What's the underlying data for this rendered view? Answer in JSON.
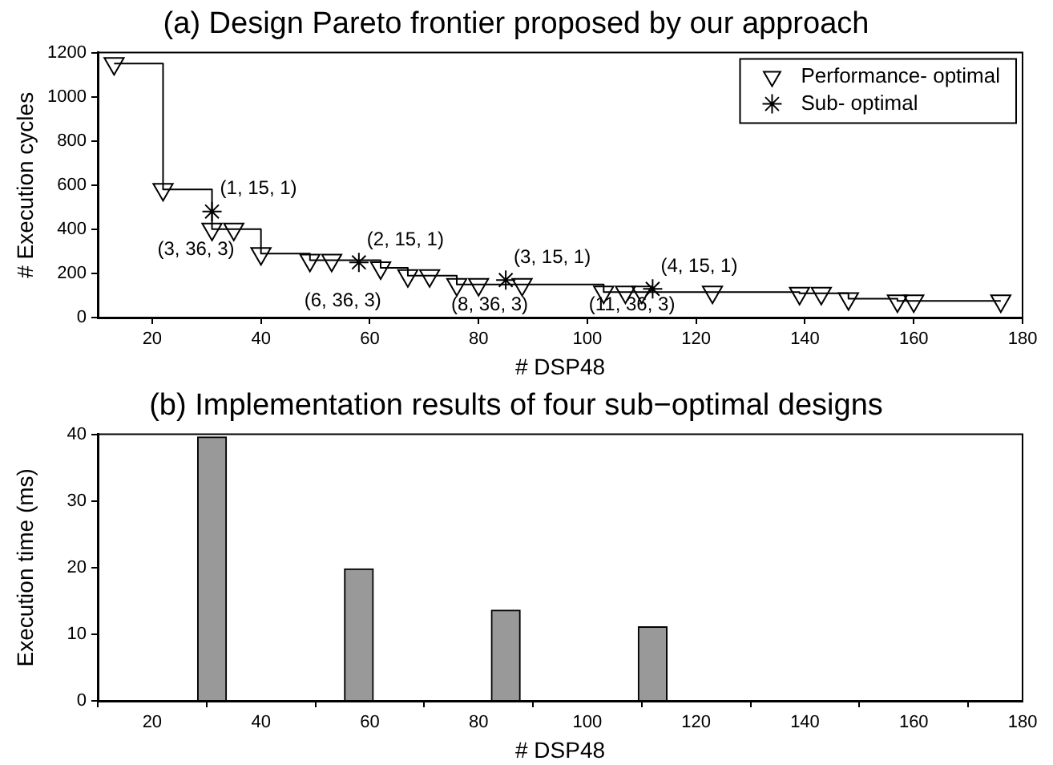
{
  "chart_data": [
    {
      "type": "step",
      "title": "(a) Design Pareto frontier proposed by our approach",
      "xlabel": "# DSP48",
      "ylabel": "# Execution cycles",
      "series": [
        {
          "name": "Performance- optimal",
          "type": "step",
          "color": "#000000",
          "marker": "triangle",
          "x": [
            13,
            22,
            31,
            35,
            40,
            49,
            53,
            62,
            67,
            71,
            76,
            80,
            88,
            103,
            107,
            110,
            123,
            139,
            143,
            148,
            157,
            160,
            176
          ],
          "values": [
            1150,
            580,
            400,
            400,
            290,
            260,
            260,
            225,
            190,
            190,
            150,
            150,
            150,
            115,
            115,
            115,
            115,
            110,
            110,
            85,
            75,
            75,
            75
          ]
        },
        {
          "name": "Sub- optimal",
          "type": "scatter",
          "color": "#000000",
          "marker": "cross",
          "x": [
            31,
            58,
            85,
            112
          ],
          "values": [
            480,
            250,
            170,
            130
          ]
        }
      ],
      "xlim": [
        10,
        180
      ],
      "xticks": [
        20,
        40,
        60,
        80,
        100,
        120,
        140,
        160,
        180
      ],
      "ylim": [
        0,
        1200
      ],
      "yticks": [
        0,
        200,
        400,
        600,
        800,
        1000,
        1200
      ],
      "legend": "top right",
      "grid": false,
      "annotations": [
        {
          "text": "(1, 15, 1)",
          "x": 31,
          "y": 480
        },
        {
          "text": "(3, 36, 3)",
          "x": 31,
          "y": 480
        },
        {
          "text": "(2, 15, 1)",
          "x": 58,
          "y": 250
        },
        {
          "text": "(6, 36, 3)",
          "x": 58,
          "y": 250
        },
        {
          "text": "(3, 15, 1)",
          "x": 85,
          "y": 170
        },
        {
          "text": "(8, 36, 3)",
          "x": 85,
          "y": 170
        },
        {
          "text": "(4, 15, 1)",
          "x": 112,
          "y": 130
        },
        {
          "text": "(11, 36, 3)",
          "x": 112,
          "y": 130
        }
      ]
    },
    {
      "type": "bar",
      "title": "(b) Implementation results of four sub−optimal designs",
      "xlabel": "# DSP48",
      "ylabel": "Execution time (ms)",
      "x": [
        31,
        58,
        85,
        112
      ],
      "values": [
        39.6,
        19.8,
        13.6,
        11.1
      ],
      "color": "#999999",
      "xlim": [
        10,
        180
      ],
      "xticks": [
        20,
        40,
        60,
        80,
        100,
        120,
        140,
        160,
        180
      ],
      "ylim": [
        0,
        40
      ],
      "yticks": [
        0,
        10,
        20,
        30,
        40
      ],
      "grid": false
    }
  ]
}
